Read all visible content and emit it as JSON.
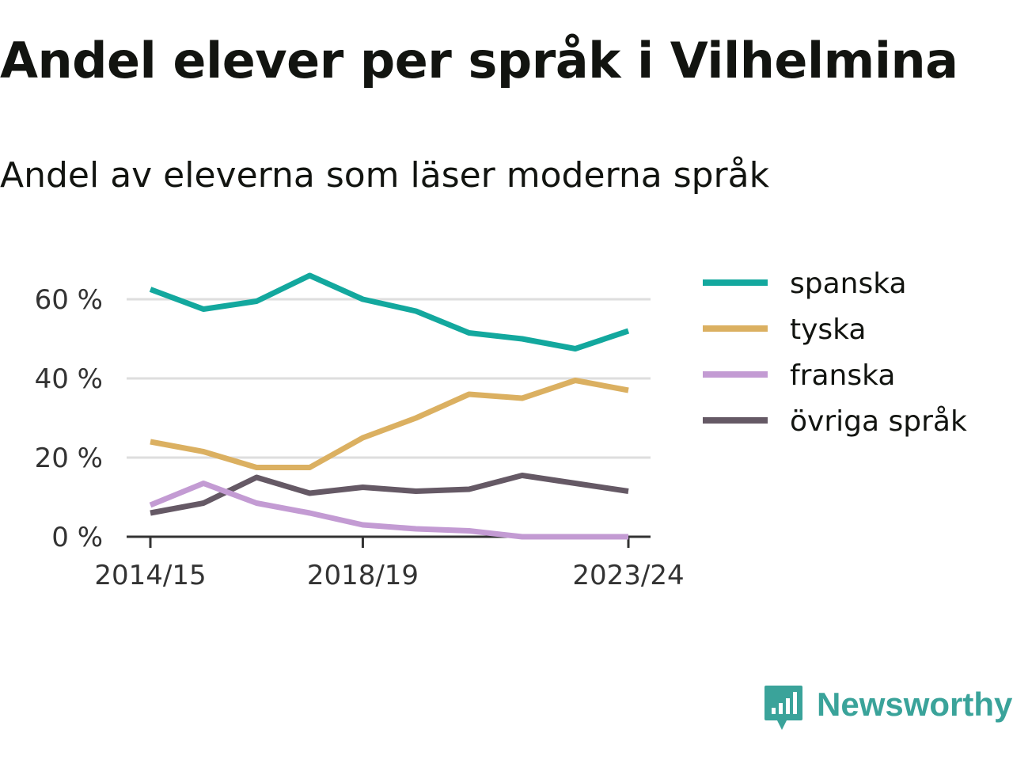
{
  "title": "Andel elever per språk i Vilhelmina",
  "subtitle": "Andel av eleverna som läser moderna språk",
  "brand": {
    "name": "Newsworthy",
    "color": "#3aa39a",
    "icon": "chart-bubble-icon"
  },
  "chart_data": {
    "type": "line",
    "x": [
      "2014/15",
      "2015/16",
      "2016/17",
      "2017/18",
      "2018/19",
      "2019/20",
      "2020/21",
      "2021/22",
      "2022/23",
      "2023/24"
    ],
    "x_tick_labels": [
      "2014/15",
      "2018/19",
      "2023/24"
    ],
    "y_ticks": [
      0,
      20,
      40,
      60
    ],
    "y_tick_labels": [
      "0 %",
      "20 %",
      "40 %",
      "60 %"
    ],
    "ylim": [
      0,
      66
    ],
    "grid": true,
    "legend_position": "right",
    "series": [
      {
        "name": "spanska",
        "color": "#13a89e",
        "values": [
          62.5,
          57.5,
          59.5,
          66,
          60,
          57,
          51.5,
          50,
          47.5,
          52
        ]
      },
      {
        "name": "tyska",
        "color": "#dbb061",
        "values": [
          24,
          21.5,
          17.5,
          17.5,
          25,
          30,
          36,
          35,
          39.5,
          37
        ]
      },
      {
        "name": "franska",
        "color": "#c39bd3",
        "values": [
          8,
          13.5,
          8.5,
          6,
          3,
          2,
          1.5,
          0,
          0,
          0
        ]
      },
      {
        "name": "övriga språk",
        "color": "#655965",
        "values": [
          6,
          8.5,
          15,
          11,
          12.5,
          11.5,
          12,
          15.5,
          13.5,
          11.5
        ]
      }
    ]
  }
}
